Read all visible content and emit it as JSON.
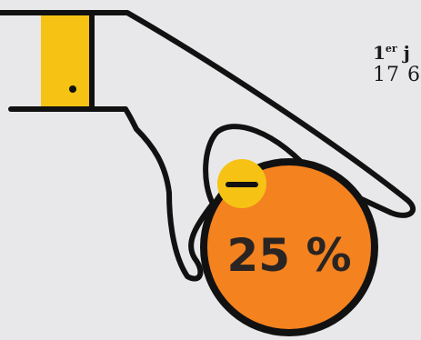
{
  "badge": {
    "percent_text": "25 %",
    "sign": "−"
  },
  "info": {
    "date_number": "1",
    "date_suffix": "er",
    "date_rest": " j",
    "figure_text": "17 6"
  },
  "colors": {
    "background": "#e8e8ea",
    "door_yellow": "#f6c314",
    "coin_orange": "#f3821f",
    "outline": "#111111"
  },
  "icons": [
    "door-icon",
    "hand-icon",
    "coin-icon",
    "minus-icon"
  ]
}
